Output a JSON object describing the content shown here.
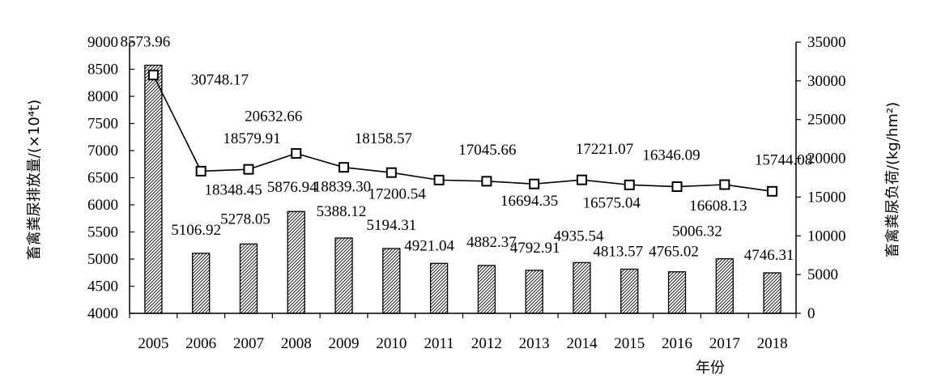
{
  "chart_data": {
    "type": "bar",
    "categories": [
      "2005",
      "2006",
      "2007",
      "2008",
      "2009",
      "2010",
      "2011",
      "2012",
      "2013",
      "2014",
      "2015",
      "2016",
      "2017",
      "2018"
    ],
    "series": [
      {
        "type": "bar",
        "axis": "left",
        "values": [
          8573.96,
          5106.92,
          5278.05,
          5876.94,
          5388.12,
          5194.31,
          4921.04,
          4882.37,
          4792.91,
          4935.54,
          4813.57,
          4765.02,
          5006.32,
          4746.31
        ],
        "labels": [
          "8573.96",
          "5106.92",
          "5278.05",
          "5876.94",
          "5388.12",
          "5194.31",
          "4921.04",
          "4882.37",
          "4792.91",
          "4935.54",
          "4813.57",
          "4765.02",
          "5006.32",
          "4746.31"
        ],
        "pattern": "diagonal-hatch"
      },
      {
        "type": "line",
        "axis": "right",
        "values": [
          30748.17,
          18348.45,
          18579.91,
          20632.66,
          18839.3,
          18158.57,
          17200.54,
          17045.66,
          16694.35,
          17221.07,
          16575.04,
          16346.09,
          16608.13,
          15744.08
        ],
        "labels": [
          "30748.17",
          "18348.45",
          "18579.91",
          "20632.66",
          "18839.30",
          "18158.57",
          "17200.54",
          "17045.66",
          "16694.35",
          "17221.07",
          "16575.04",
          "16346.09",
          "16608.13",
          "15744.08"
        ],
        "marker": "hollow-square",
        "color": "#000000"
      }
    ],
    "ylabel": "畜禽粪尿排放量/(×10⁴t)",
    "ylabel_right": "畜禽粪尿负荷/(kg/hm²)",
    "xlabel": "年份",
    "ylim": [
      4000,
      9000
    ],
    "yticks": [
      "4000",
      "4500",
      "5000",
      "5500",
      "6000",
      "6500",
      "7000",
      "7500",
      "8000",
      "8500",
      "9000"
    ],
    "ylim_right": [
      0,
      35000
    ],
    "yticks_right": [
      "0",
      "5000",
      "10000",
      "15000",
      "20000",
      "25000",
      "30000",
      "35000"
    ],
    "grid": false,
    "legend": "none"
  }
}
